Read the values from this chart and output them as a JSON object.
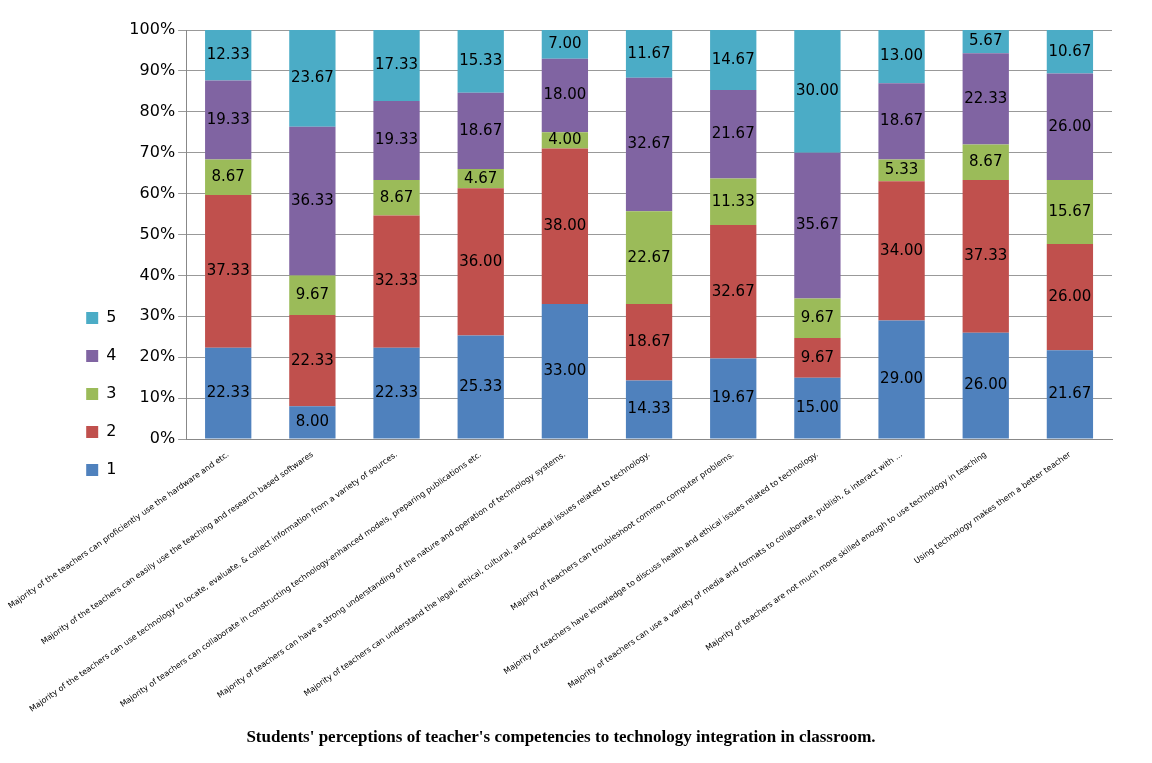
{
  "chart_data": {
    "type": "bar",
    "stacked": true,
    "title": "Students' perceptions of teacher's competencies to technology integration in classroom.",
    "categories": [
      "Majority of the teachers can proficiently use the hardware and etc.",
      "Majority of the teachers can easily use the teaching and research based softwares",
      "Majority of the teachers can use technology to locate, evaluate, & collect information from a variety of sources.",
      "Majority of teachers can collaborate in constructing technology-enhanced models, preparing publications etc.",
      "Majority of teachers can have a strong understanding of the nature and operation of technology systems.",
      "Majority of teachers can understand the legal, ethical, cultural, and societal issues related to technology.",
      "Majority of teachers can troubleshoot common computer problems.",
      "Majority of teachers have knowledge to discuss health and ethical issues related to technology.",
      "Majority of teachers can use a variety of media and formats to collaborate, publish, & interact with ...",
      "Majority of teachers are not much more skilled enough to use technology in teaching",
      "Using technology makes them a better teacher"
    ],
    "series": [
      {
        "name": "1",
        "color": "#4f81bd",
        "values": [
          22.33,
          8,
          22.33,
          25.33,
          33,
          14.33,
          19.67,
          15,
          29,
          26,
          21.67
        ],
        "value_labels": [
          "22.33",
          "8.00",
          "22.33",
          "25.33",
          "33.00",
          "14.33",
          "19.67",
          "15.00",
          "29.00",
          "26.00",
          "21.67"
        ]
      },
      {
        "name": "2",
        "color": "#c0504d",
        "values": [
          37.33,
          22.33,
          32.33,
          36,
          38,
          18.67,
          32.67,
          9.67,
          34,
          37.33,
          26
        ],
        "value_labels": [
          "37.33",
          "22.33",
          "32.33",
          "36.00",
          "38.00",
          "18.67",
          "32.67",
          "9.67",
          "34.00",
          "37.33",
          "26.00"
        ]
      },
      {
        "name": "3",
        "color": "#9bbb59",
        "values": [
          8.67,
          9.67,
          8.67,
          4.67,
          4,
          22.67,
          11.33,
          9.67,
          5.33,
          8.67,
          15.67
        ],
        "value_labels": [
          "8.67",
          "9.67",
          "8.67",
          "4.67",
          "4.00",
          "22.67",
          "11.33",
          "9.67",
          "5.33",
          "8.67",
          "15.67"
        ]
      },
      {
        "name": "4",
        "color": "#8064a2",
        "values": [
          19.33,
          36.33,
          19.33,
          18.67,
          18,
          32.67,
          21.67,
          35.67,
          18.67,
          22.33,
          26
        ],
        "value_labels": [
          "19.33",
          "36.33",
          "19.33",
          "18.67",
          "18.00",
          "32.67",
          "21.67",
          "35.67",
          "18.67",
          "22.33",
          "26.00"
        ]
      },
      {
        "name": "5",
        "color": "#4bacc6",
        "values": [
          12.33,
          23.67,
          17.33,
          15.33,
          7,
          11.67,
          14.67,
          30,
          13,
          5.67,
          10.67
        ],
        "value_labels": [
          "12.33",
          "23.67",
          "17.33",
          "15.33",
          "7.00",
          "11.67",
          "14.67",
          "30.00",
          "13.00",
          "5.67",
          "10.67"
        ]
      }
    ],
    "ylim": [
      0,
      100
    ],
    "yticks": [
      {
        "value": 0,
        "label": "0%"
      },
      {
        "value": 10,
        "label": "10%"
      },
      {
        "value": 20,
        "label": "20%"
      },
      {
        "value": 30,
        "label": "30%"
      },
      {
        "value": 40,
        "label": "40%"
      },
      {
        "value": 50,
        "label": "50%"
      },
      {
        "value": 60,
        "label": "60%"
      },
      {
        "value": 70,
        "label": "70%"
      },
      {
        "value": 80,
        "label": "80%"
      },
      {
        "value": 90,
        "label": "90%"
      },
      {
        "value": 100,
        "label": "100%"
      }
    ],
    "grid": "y",
    "legend": "left"
  }
}
